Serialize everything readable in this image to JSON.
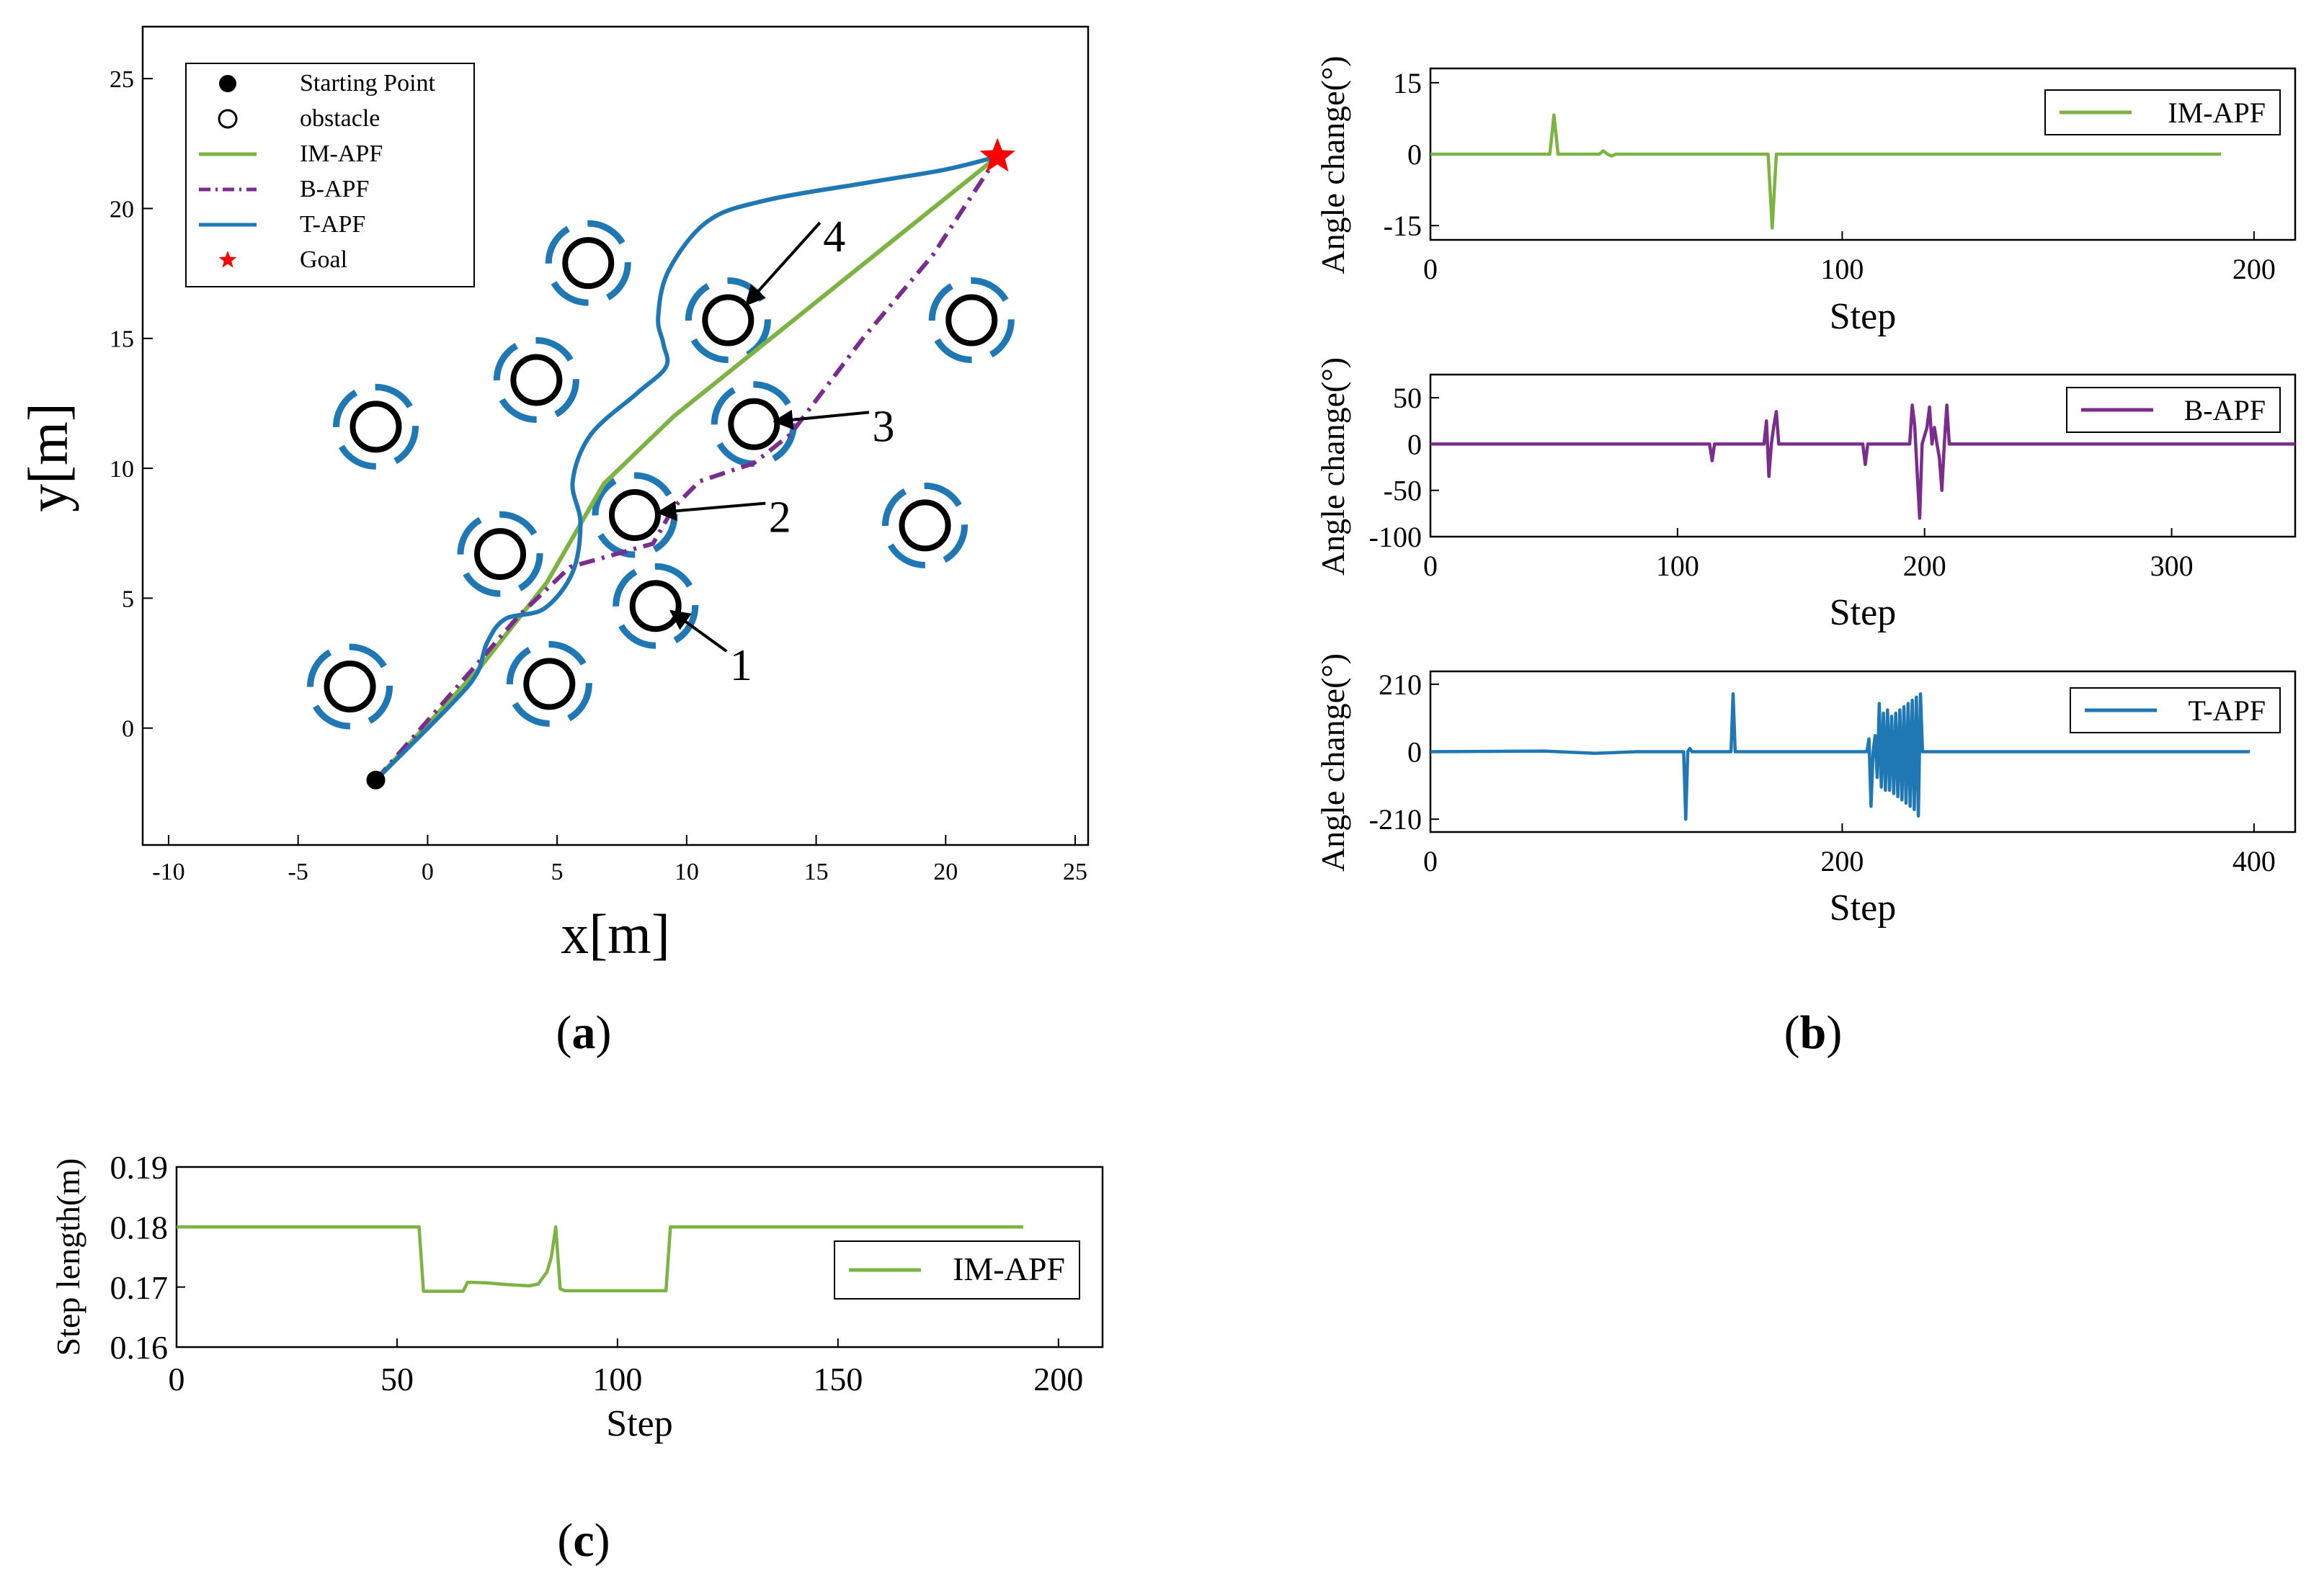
{
  "figure": {
    "panel_labels": {
      "a": "(a)",
      "b": "(b)",
      "c": "(c)"
    },
    "label_letters": {
      "a": "a",
      "b": "b",
      "c": "c"
    }
  },
  "colors": {
    "im_apf": "#7cb342",
    "b_apf": "#7b2d8e",
    "t_apf": "#1f77b4",
    "obstacle_ring": "#1f77b4",
    "goal": "#ff0000",
    "axis": "#000000"
  },
  "chart_data": [
    {
      "id": "a",
      "type": "line",
      "title": "",
      "xlabel": "x[m]",
      "ylabel": "y[m]",
      "xlim": [
        -11,
        25.5
      ],
      "ylim": [
        -4.5,
        27
      ],
      "xticks": [
        -10,
        -5,
        0,
        5,
        10,
        15,
        20,
        25
      ],
      "xtick_labels": [
        "-10",
        "-5",
        "0",
        "5",
        "10",
        "15",
        "20",
        "25"
      ],
      "yticks": [
        0,
        5,
        10,
        15,
        20,
        25
      ],
      "ytick_labels": [
        "0",
        "5",
        "10",
        "15",
        "20",
        "25"
      ],
      "legend": {
        "position": "top-left",
        "entries": [
          {
            "label": "Starting Point",
            "marker": "filled-circle"
          },
          {
            "label": "obstacle",
            "marker": "open-circle"
          },
          {
            "label": "IM-APF",
            "line": "solid",
            "color": "#7cb342"
          },
          {
            "label": "B-APF",
            "line": "dashdot",
            "color": "#7b2d8e"
          },
          {
            "label": "T-APF",
            "line": "solid",
            "color": "#1f77b4"
          },
          {
            "label": "Goal",
            "marker": "star",
            "color": "#ff0000"
          }
        ]
      },
      "start": [
        -2,
        -2
      ],
      "goal": [
        22,
        22
      ],
      "obstacles": [
        [
          -3,
          1.6
        ],
        [
          4.7,
          1.7
        ],
        [
          8.8,
          4.7
        ],
        [
          2.8,
          6.7
        ],
        [
          8,
          8.2
        ],
        [
          19.2,
          7.8
        ],
        [
          -2,
          11.6
        ],
        [
          12.6,
          11.7
        ],
        [
          4.2,
          13.4
        ],
        [
          11.6,
          15.7
        ],
        [
          21,
          15.7
        ],
        [
          6.2,
          17.9
        ]
      ],
      "annotations": [
        {
          "text": "1",
          "at": [
            12.1,
            2.4
          ],
          "arrow_to": [
            9.4,
            4.5
          ]
        },
        {
          "text": "2",
          "at": [
            13.6,
            8.1
          ],
          "arrow_to": [
            8.9,
            8.3
          ]
        },
        {
          "text": "3",
          "at": [
            17.6,
            11.6
          ],
          "arrow_to": [
            13.4,
            11.8
          ]
        },
        {
          "text": "4",
          "at": [
            15.7,
            18.9
          ],
          "arrow_to": [
            12.3,
            16.3
          ]
        }
      ],
      "series": [
        {
          "name": "IM-APF",
          "style": "solid",
          "points": [
            [
              -2,
              -2
            ],
            [
              2,
              2.3
            ],
            [
              4.6,
              5.6
            ],
            [
              6.8,
              9.4
            ],
            [
              9.5,
              12
            ],
            [
              13.5,
              15.2
            ],
            [
              17.5,
              18.4
            ],
            [
              22,
              22
            ]
          ]
        },
        {
          "name": "B-APF",
          "style": "dashdot",
          "points": [
            [
              -2,
              -2
            ],
            [
              1.5,
              2
            ],
            [
              3.5,
              4.3
            ],
            [
              5.5,
              6.2
            ],
            [
              8.7,
              7.1
            ],
            [
              9.5,
              8.5
            ],
            [
              10.5,
              9.5
            ],
            [
              12.6,
              10.2
            ],
            [
              14,
              11.3
            ],
            [
              16.8,
              15
            ],
            [
              19.5,
              18.2
            ],
            [
              22,
              22
            ]
          ]
        },
        {
          "name": "T-APF",
          "style": "solid",
          "points": [
            [
              -2,
              -2
            ],
            [
              0.9,
              0.9
            ],
            [
              1.9,
              2.1
            ],
            [
              2.3,
              3.3
            ],
            [
              3,
              4.2
            ],
            [
              4.5,
              4.6
            ],
            [
              5.6,
              6
            ],
            [
              5.9,
              7.9
            ],
            [
              5.6,
              9.5
            ],
            [
              6.3,
              11.3
            ],
            [
              8.1,
              12.9
            ],
            [
              9.2,
              13.9
            ],
            [
              9.1,
              14.8
            ],
            [
              8.9,
              15.8
            ],
            [
              9.3,
              17.6
            ],
            [
              10.8,
              19.5
            ],
            [
              13,
              20.3
            ],
            [
              17,
              21
            ],
            [
              20,
              21.5
            ],
            [
              22,
              22
            ]
          ]
        }
      ]
    },
    {
      "id": "b1",
      "type": "line",
      "xlabel": "Step",
      "ylabel": "Angle change(°)",
      "xlim": [
        0,
        210
      ],
      "ylim": [
        -18,
        18
      ],
      "xticks": [
        0,
        100,
        200
      ],
      "xtick_labels": [
        "0",
        "100",
        "200"
      ],
      "yticks": [
        15,
        0,
        -15
      ],
      "ytick_labels": [
        "15",
        "0",
        "-15"
      ],
      "legend": {
        "position": "top-right",
        "entries": [
          {
            "label": "IM-APF"
          }
        ]
      },
      "series": [
        {
          "name": "IM-APF",
          "points": [
            [
              0,
              0
            ],
            [
              29,
              0
            ],
            [
              30,
              8.2
            ],
            [
              31,
              0
            ],
            [
              41,
              0
            ],
            [
              42,
              0.7
            ],
            [
              43,
              0
            ],
            [
              44,
              -0.4
            ],
            [
              45,
              0
            ],
            [
              82,
              0
            ],
            [
              83,
              -15.5
            ],
            [
              84,
              0
            ],
            [
              192,
              0
            ]
          ]
        }
      ]
    },
    {
      "id": "b2",
      "type": "line",
      "xlabel": "Step",
      "ylabel": "Angle change(°)",
      "xlim": [
        0,
        350
      ],
      "ylim": [
        -100,
        75
      ],
      "xticks": [
        0,
        100,
        200,
        300
      ],
      "xtick_labels": [
        "0",
        "100",
        "200",
        "300"
      ],
      "yticks": [
        50,
        0,
        -50,
        -100
      ],
      "ytick_labels": [
        "50",
        "0",
        "-50",
        "-100"
      ],
      "legend": {
        "position": "top-right",
        "entries": [
          {
            "label": "B-APF"
          }
        ]
      },
      "series": [
        {
          "name": "B-APF",
          "points": [
            [
              0,
              0
            ],
            [
              113,
              0
            ],
            [
              114,
              -18
            ],
            [
              115,
              0
            ],
            [
              135,
              0
            ],
            [
              136,
              25
            ],
            [
              137,
              -35
            ],
            [
              138,
              0
            ],
            [
              139,
              20
            ],
            [
              140,
              35
            ],
            [
              141,
              0
            ],
            [
              175,
              0
            ],
            [
              176,
              -22
            ],
            [
              177,
              0
            ],
            [
              194,
              0
            ],
            [
              195,
              42
            ],
            [
              196,
              20
            ],
            [
              197,
              -30
            ],
            [
              198,
              -80
            ],
            [
              199,
              0
            ],
            [
              201,
              18
            ],
            [
              202,
              40
            ],
            [
              203,
              0
            ],
            [
              204,
              18
            ],
            [
              205,
              0
            ],
            [
              206,
              -15
            ],
            [
              207,
              -50
            ],
            [
              208,
              0
            ],
            [
              209,
              42
            ],
            [
              210,
              0
            ],
            [
              350,
              0
            ]
          ]
        }
      ]
    },
    {
      "id": "b3",
      "type": "line",
      "xlabel": "Step",
      "ylabel": "Angle change(°)",
      "xlim": [
        0,
        420
      ],
      "ylim": [
        -250,
        250
      ],
      "xticks": [
        0,
        200,
        400
      ],
      "xtick_labels": [
        "0",
        "200",
        "400"
      ],
      "yticks": [
        210,
        0,
        -210
      ],
      "ytick_labels": [
        "210",
        "0",
        "-210"
      ],
      "legend": {
        "position": "top-right",
        "entries": [
          {
            "label": "T-APF"
          }
        ]
      },
      "series": [
        {
          "name": "T-APF",
          "points": [
            [
              0,
              0
            ],
            [
              55,
              2
            ],
            [
              80,
              -5
            ],
            [
              100,
              0
            ],
            [
              123,
              0
            ],
            [
              124,
              -210
            ],
            [
              125,
              0
            ],
            [
              126,
              10
            ],
            [
              127,
              0
            ],
            [
              146,
              0
            ],
            [
              147,
              180
            ],
            [
              148,
              0
            ],
            [
              212,
              0
            ],
            [
              213,
              40
            ],
            [
              214,
              -170
            ],
            [
              215,
              0
            ],
            [
              216,
              50
            ],
            [
              217,
              -80
            ],
            [
              218,
              150
            ],
            [
              219,
              -110
            ],
            [
              220,
              120
            ],
            [
              221,
              -120
            ],
            [
              222,
              130
            ],
            [
              223,
              -120
            ],
            [
              224,
              110
            ],
            [
              225,
              -130
            ],
            [
              226,
              120
            ],
            [
              227,
              -140
            ],
            [
              228,
              130
            ],
            [
              229,
              -150
            ],
            [
              230,
              140
            ],
            [
              231,
              -160
            ],
            [
              232,
              150
            ],
            [
              233,
              -170
            ],
            [
              234,
              160
            ],
            [
              235,
              -180
            ],
            [
              236,
              170
            ],
            [
              237,
              -200
            ],
            [
              238,
              180
            ],
            [
              239,
              0
            ],
            [
              398,
              0
            ]
          ]
        }
      ]
    },
    {
      "id": "c",
      "type": "line",
      "xlabel": "Step",
      "ylabel": "Step length(m)",
      "xlim": [
        0,
        210
      ],
      "ylim": [
        0.16,
        0.19
      ],
      "xticks": [
        0,
        50,
        100,
        150,
        200
      ],
      "xtick_labels": [
        "0",
        "50",
        "100",
        "150",
        "200"
      ],
      "yticks": [
        0.19,
        0.18,
        0.17,
        0.16
      ],
      "ytick_labels": [
        "0.19",
        "0.18",
        "0.17",
        "0.16"
      ],
      "legend": {
        "position": "right",
        "entries": [
          {
            "label": "IM-APF"
          }
        ]
      },
      "series": [
        {
          "name": "IM-APF",
          "points": [
            [
              0,
              0.18
            ],
            [
              55,
              0.18
            ],
            [
              56,
              0.1693
            ],
            [
              65,
              0.1693
            ],
            [
              66,
              0.1708
            ],
            [
              70,
              0.1707
            ],
            [
              75,
              0.1704
            ],
            [
              80,
              0.1702
            ],
            [
              82,
              0.1705
            ],
            [
              84,
              0.1725
            ],
            [
              85,
              0.175
            ],
            [
              86,
              0.18
            ],
            [
              87,
              0.1697
            ],
            [
              88,
              0.1694
            ],
            [
              111,
              0.1694
            ],
            [
              112,
              0.18
            ],
            [
              192,
              0.18
            ]
          ]
        }
      ]
    }
  ]
}
